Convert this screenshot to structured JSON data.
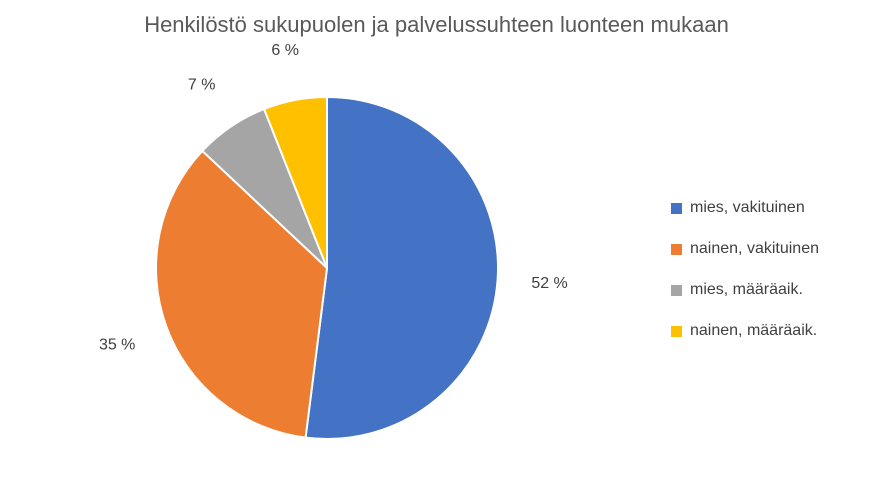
{
  "chart_data": {
    "type": "pie",
    "title": "Henkilöstö sukupuolen ja palvelussuhteen luonteen mukaan",
    "categories": [
      "mies, vakituinen",
      "nainen, vakituinen",
      "mies, määräaik.",
      "nainen, määräaik."
    ],
    "values": [
      52,
      35,
      7,
      6
    ],
    "value_labels": [
      "52 %",
      "35 %",
      "7 %",
      "6 %"
    ],
    "colors": [
      "#4472C4",
      "#ED7D31",
      "#A5A5A5",
      "#FFC000"
    ],
    "legend_position": "right",
    "start_angle": "top, clockwise"
  }
}
